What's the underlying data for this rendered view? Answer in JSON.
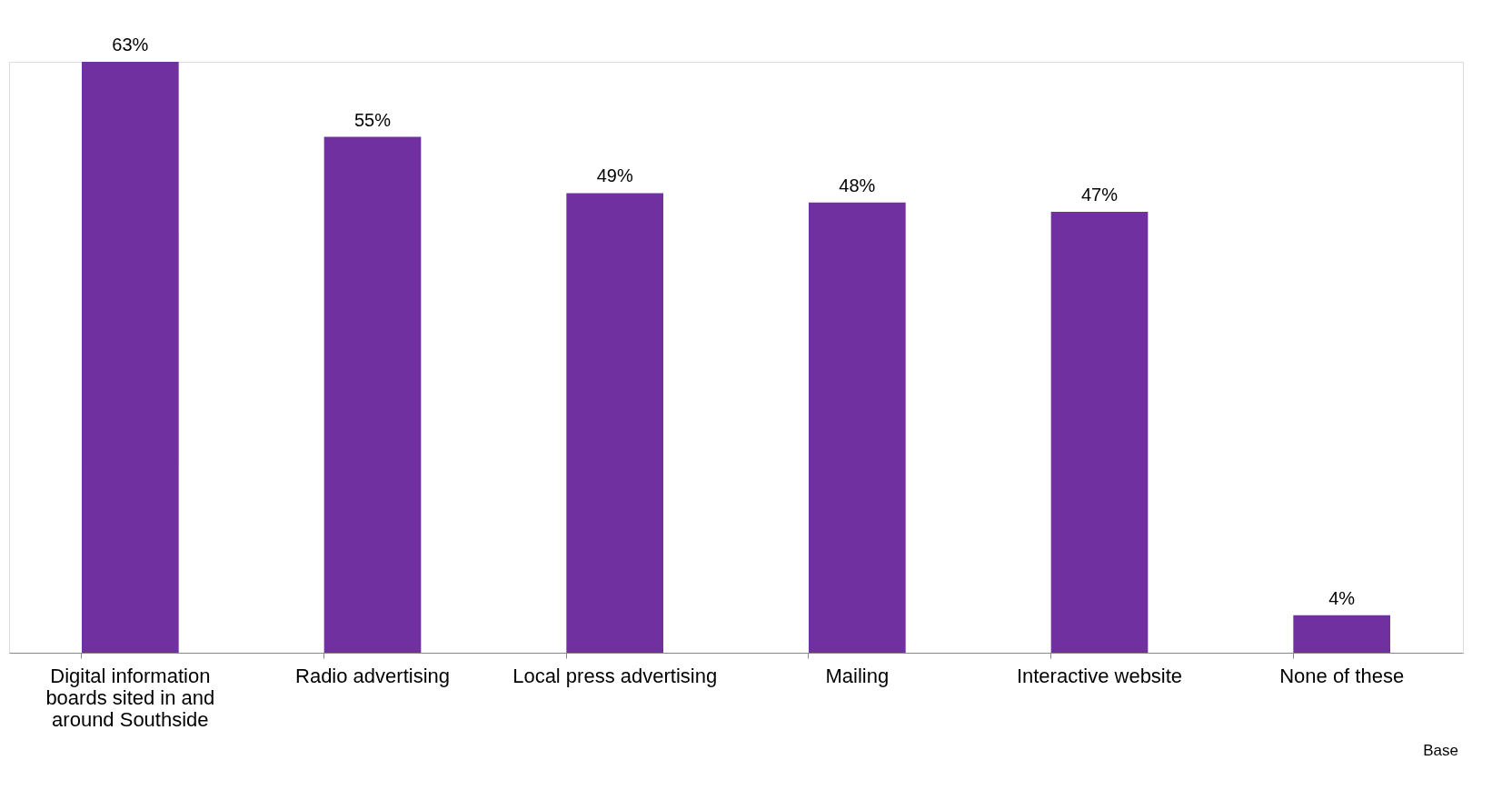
{
  "chart_data": {
    "type": "bar",
    "categories": [
      "Digital information boards sited in and around Southside",
      "Radio advertising",
      "Local press advertising",
      "Mailing",
      "Interactive website",
      "None of these"
    ],
    "values": [
      63,
      55,
      49,
      48,
      47,
      4
    ],
    "value_labels": [
      "63%",
      "55%",
      "49%",
      "48%",
      "47%",
      "4%"
    ],
    "color": "#7030a0",
    "annotations": [
      "Base"
    ]
  }
}
